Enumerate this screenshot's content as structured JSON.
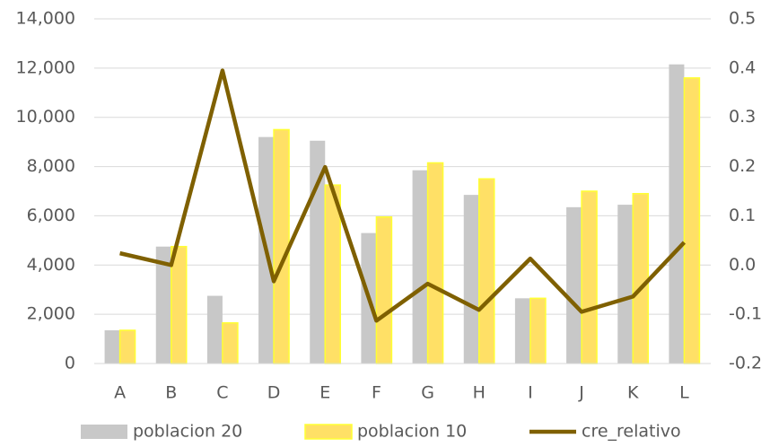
{
  "chart_data": {
    "type": "bar_line",
    "categories": [
      "A",
      "B",
      "C",
      "D",
      "E",
      "F",
      "G",
      "H",
      "I",
      "J",
      "K",
      "L"
    ],
    "series": [
      {
        "name": "poblacion 20",
        "type": "bar",
        "color": "#c8c8c8",
        "values": [
          1350,
          4750,
          2750,
          9200,
          9050,
          5300,
          7850,
          6850,
          2650,
          6350,
          6450,
          12150
        ]
      },
      {
        "name": "poblacion 10",
        "type": "bar",
        "color": "#ffe066",
        "values": [
          1350,
          4750,
          1650,
          9500,
          7250,
          5950,
          8150,
          7500,
          2650,
          7000,
          6900,
          11600
        ]
      },
      {
        "name": "cre_relativo",
        "type": "line",
        "axis": "y2",
        "color": "#7f6000",
        "values": [
          0.024,
          0.0,
          0.395,
          -0.033,
          0.199,
          -0.113,
          -0.038,
          -0.091,
          0.013,
          -0.095,
          -0.064,
          0.046
        ]
      }
    ],
    "ylim": [
      0,
      14000
    ],
    "yticks": [
      0,
      {
        "value": 2000,
        "label": "2,000"
      },
      {
        "value": 4000,
        "label": "4,000"
      },
      {
        "value": 6000,
        "label": "6,000"
      },
      {
        "value": 8000,
        "label": "8,000"
      },
      {
        "value": 10000,
        "label": "10,000"
      },
      {
        "value": 12000,
        "label": "12,000"
      },
      {
        "value": 14000,
        "label": "14,000"
      }
    ],
    "y2lim": [
      -0.2,
      0.5
    ],
    "y2ticks": [
      -0.2,
      -0.1,
      {
        "value": 0,
        "label": "0.0"
      },
      0.1,
      0.2,
      0.3,
      0.4,
      0.5
    ],
    "grid": true,
    "legend": "bottom"
  }
}
